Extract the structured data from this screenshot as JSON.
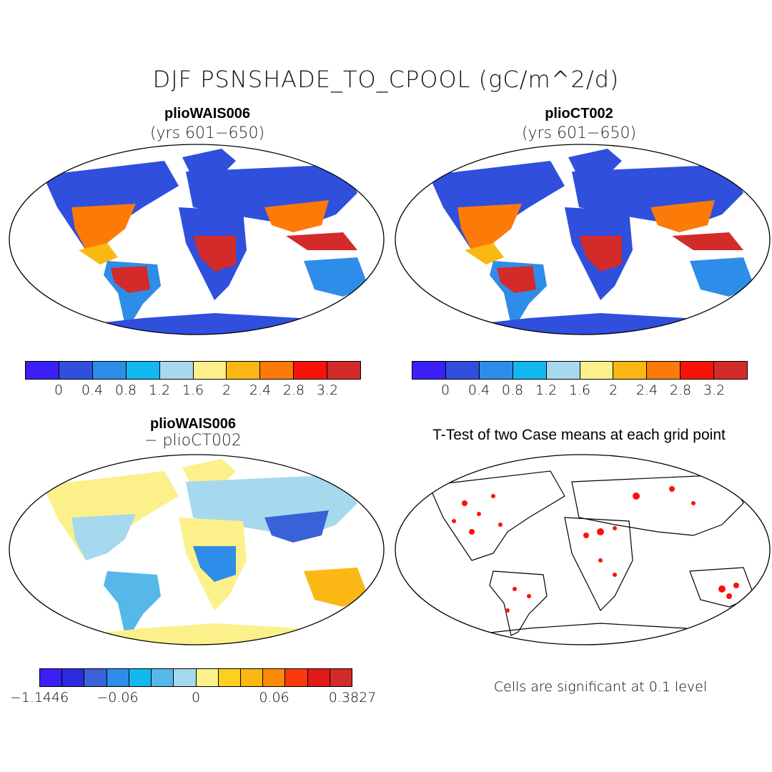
{
  "main_title": "DJF PSNSHADE_TO_CPOOL (gC/m^2/d)",
  "panels": [
    {
      "title": "plioWAIS006",
      "subtitle": "(yrs 601−650)"
    },
    {
      "title": "plioCT002",
      "subtitle": "(yrs 601−650)"
    },
    {
      "title": "plioWAIS006",
      "subtitle": "− plioCT002"
    },
    {
      "title": "T-Test of two Case means at each grid point",
      "subtitle": ""
    }
  ],
  "colorbar_top": {
    "colors": [
      "#3b1ff5",
      "#2f4fdc",
      "#2e8de8",
      "#14b8f0",
      "#a6d8ee",
      "#fbf08a",
      "#fbb714",
      "#fc7a08",
      "#f8130a",
      "#d32a2a"
    ],
    "ticks": [
      "0",
      "0.4",
      "0.8",
      "1.2",
      "1.6",
      "2",
      "2.4",
      "2.8",
      "3.2"
    ]
  },
  "colorbar_diff": {
    "colors": [
      "#3b1ff5",
      "#2a2ae0",
      "#3a62d8",
      "#2e8de8",
      "#14b8f0",
      "#55b8e8",
      "#a6d8ee",
      "#fbf08a",
      "#fbd020",
      "#fbb714",
      "#fc8a08",
      "#fa3a0a",
      "#e41a1a",
      "#d32a2a"
    ],
    "ticks": [
      "−1.1446",
      "−0.06",
      "0",
      "0.06",
      "0.3827"
    ]
  },
  "significance_note": "Cells are significant at 0.1 level",
  "colors": {
    "land_low": "#2f4fdc",
    "diff_base": "#fbf08a",
    "significant": "#f8130a"
  }
}
